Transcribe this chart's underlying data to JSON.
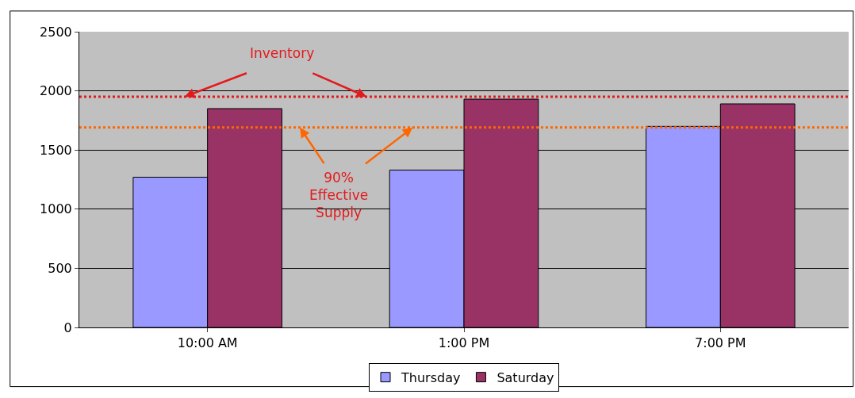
{
  "chart_data": {
    "type": "bar",
    "categories": [
      "10:00 AM",
      "1:00 PM",
      "7:00 PM"
    ],
    "series": [
      {
        "name": "Thursday",
        "color": "#9999ff",
        "values": [
          1270,
          1330,
          1700
        ]
      },
      {
        "name": "Saturday",
        "color": "#993366",
        "values": [
          1850,
          1930,
          1890
        ]
      }
    ],
    "ylim": [
      0,
      2500
    ],
    "yticks": [
      0,
      500,
      1000,
      1500,
      2000,
      2500
    ],
    "grid": "y",
    "legend": "bottom",
    "ref_lines": [
      {
        "axis": "y",
        "value": 1950,
        "label": "Inventory",
        "color": "#e31a1c",
        "line_style": "dotted"
      },
      {
        "axis": "y",
        "value": 1690,
        "label": "90%\nEffective\nSupply",
        "color": "#ff6600",
        "line_style": "dotted"
      }
    ]
  }
}
